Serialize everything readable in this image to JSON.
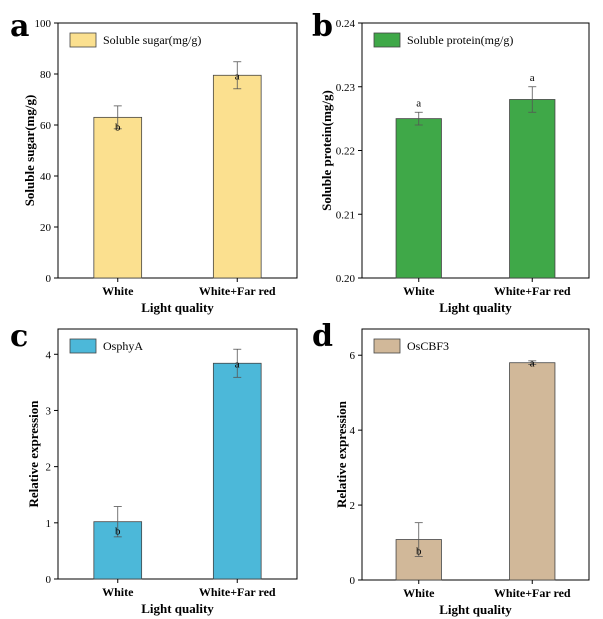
{
  "chart_data": [
    {
      "panel": "a",
      "type": "bar",
      "categories": [
        "White",
        "White+Far red"
      ],
      "series": [
        {
          "name": "Soluble sugar(mg/g)",
          "values": [
            63,
            79.5
          ],
          "errors": [
            4.5,
            5.3
          ]
        }
      ],
      "significance": [
        "b",
        "a"
      ],
      "xlabel": "Light quality",
      "ylabel": "Soluble sugar(mg/g)",
      "ylim": [
        0,
        100
      ],
      "yticks": [
        0,
        20,
        40,
        60,
        80,
        100
      ],
      "ytick_labels": [
        "0",
        "20",
        "40",
        "60",
        "80",
        "100"
      ],
      "color": "#fbe08f",
      "legend_position": "top-left"
    },
    {
      "panel": "b",
      "type": "bar",
      "categories": [
        "White",
        "White+Far red"
      ],
      "series": [
        {
          "name": "Soluble protein(mg/g)",
          "values": [
            0.225,
            0.228
          ],
          "errors": [
            0.001,
            0.002
          ]
        }
      ],
      "significance": [
        "a",
        "a"
      ],
      "xlabel": "Light quality",
      "ylabel": "Soluble protein(mg/g)",
      "ylim": [
        0.2,
        0.24
      ],
      "yticks": [
        0.2,
        0.21,
        0.22,
        0.23,
        0.24
      ],
      "ytick_labels": [
        "0.20",
        "0.21",
        "0.22",
        "0.23",
        "0.24"
      ],
      "color": "#3fa848",
      "legend_position": "top-left"
    },
    {
      "panel": "c",
      "type": "bar",
      "categories": [
        "White",
        "White+Far red"
      ],
      "series": [
        {
          "name": "OsphyA",
          "values": [
            1.02,
            3.84
          ],
          "errors": [
            0.27,
            0.25
          ]
        }
      ],
      "significance": [
        "b",
        "a"
      ],
      "xlabel": "Light quality",
      "ylabel": "Relative expression",
      "ylim": [
        0,
        4.45
      ],
      "yticks": [
        0,
        1,
        2,
        3,
        4
      ],
      "ytick_labels": [
        "0",
        "1",
        "2",
        "3",
        "4"
      ],
      "color": "#4cb8d9",
      "legend_position": "top-left"
    },
    {
      "panel": "d",
      "type": "bar",
      "categories": [
        "White",
        "White+Far red"
      ],
      "series": [
        {
          "name": "OsCBF3",
          "values": [
            1.08,
            5.8
          ],
          "errors": [
            0.45,
            0.05
          ]
        }
      ],
      "significance": [
        "b",
        "a"
      ],
      "xlabel": "Light quality",
      "ylabel": "Relative expression",
      "ylim": [
        0,
        6.7
      ],
      "yticks": [
        0,
        2,
        4,
        6
      ],
      "ytick_labels": [
        "0",
        "2",
        "4",
        "6"
      ],
      "color": "#d1b899",
      "legend_position": "top-left"
    }
  ]
}
